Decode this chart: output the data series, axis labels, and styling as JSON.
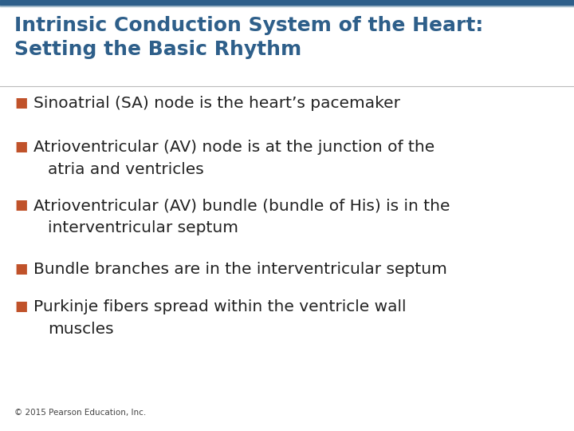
{
  "title_line1": "Intrinsic Conduction System of the Heart:",
  "title_line2": "Setting the Basic Rhythm",
  "title_color": "#2E5F8A",
  "title_fontsize": 18,
  "bullet_color": "#C0522A",
  "bullet_text_color": "#222222",
  "bullet_fontsize": 14.5,
  "background_color": "#FFFFFF",
  "top_bar_color": "#2E5F8A",
  "footer_text": "© 2015 Pearson Education, Inc.",
  "footer_fontsize": 7.5,
  "footer_color": "#444444",
  "bullets": [
    {
      "line1": "Sinoatrial (SA) node is the heart’s pacemaker",
      "line2": null
    },
    {
      "line1": "Atrioventricular (AV) node is at the junction of the",
      "line2": "atria and ventricles"
    },
    {
      "line1": "Atrioventricular (AV) bundle (bundle of His) is in the",
      "line2": "interventricular septum"
    },
    {
      "line1": "Bundle branches are in the interventricular septum",
      "line2": null
    },
    {
      "line1": "Purkinje fibers spread within the ventricle wall",
      "line2": "muscles"
    }
  ]
}
